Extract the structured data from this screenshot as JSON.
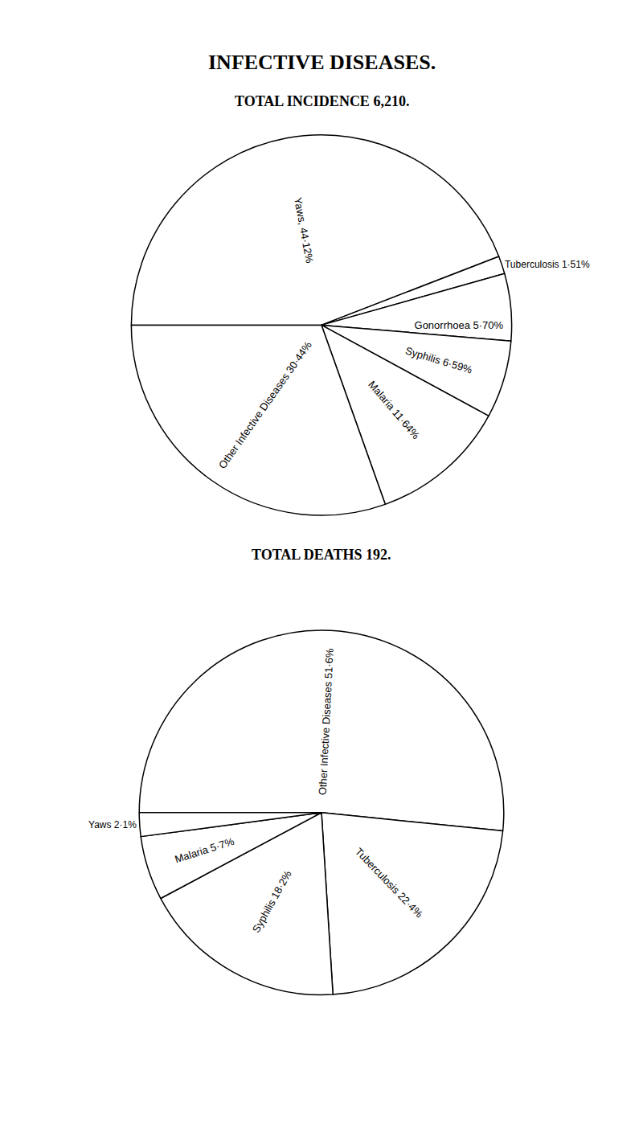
{
  "heading": "INFECTIVE DISEASES.",
  "chart_data": [
    {
      "type": "pie",
      "title": "TOTAL INCIDENCE 6,210.",
      "categories": [
        "Yaws",
        "Tuberculosis",
        "Gonorrhoea",
        "Syphilis",
        "Malaria",
        "Other Infective Diseases"
      ],
      "values": [
        44.12,
        1.51,
        5.7,
        6.59,
        11.64,
        30.44
      ],
      "value_labels": [
        "Yaws, 44·12%",
        "Tuberculosis 1·51%",
        "Gonorrhoea 5·70%",
        "Syphilis 6·59%",
        "Malaria 11·64%",
        "Other Infective Diseases 30·44%"
      ],
      "data_labels": true,
      "color": "#ffffff"
    },
    {
      "type": "pie",
      "title": "TOTAL DEATHS 192.",
      "categories": [
        "Other Infective Diseases",
        "Tuberculosis",
        "Syphilis",
        "Malaria",
        "Yaws"
      ],
      "values": [
        51.6,
        22.4,
        18.2,
        5.7,
        2.1
      ],
      "value_labels": [
        "Other Infective Diseases 51·6%",
        "Tuberculosis 22·4%",
        "Syphilis 18·2%",
        "Malaria 5·7%",
        "Yaws 2·1%"
      ],
      "data_labels": true,
      "color": "#ffffff"
    }
  ]
}
